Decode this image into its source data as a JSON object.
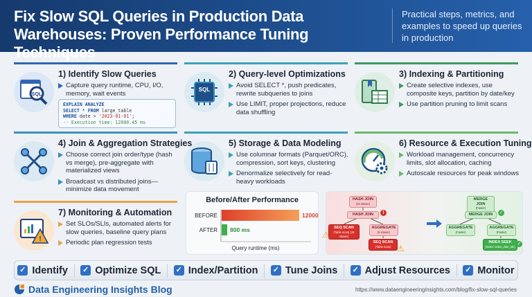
{
  "header": {
    "title": "Fix Slow SQL Queries in Production Data Warehouses: Proven Performance Tuning Techniques",
    "subtitle": "Practical steps, metrics, and examples to speed up queries in production"
  },
  "sections": [
    {
      "title": "1) Identify Slow Queries",
      "icon": "sql-magnifier-icon",
      "accent": "#2f66b3",
      "bullets": [
        "Capture query runtime, CPU, I/O, memory, wait events"
      ]
    },
    {
      "title": "2) Query-level Optimizations",
      "icon": "sql-chip-icon",
      "accent": "#3aa0b8",
      "bullets": [
        "Avoid SELECT *, push predicates, rewrite subqueries to joins",
        "Use LIMIT, proper projections, reduce data shuffling"
      ]
    },
    {
      "title": "3) Indexing & Partitioning",
      "icon": "index-table-icon",
      "accent": "#3d9a5e",
      "bullets": [
        "Create selective indexes, use composite keys, partition by date/key",
        "Use partition pruning to limit scans"
      ]
    },
    {
      "title": "4) Join & Aggregation Strategies",
      "icon": "join-network-icon",
      "accent": "#3a8fc0",
      "bullets": [
        "Choose correct join order/type (hash vs merge), pre-aggregate with materialized views",
        "Broadcast vs distributed joins—minimize data movement"
      ]
    },
    {
      "title": "5) Storage & Data Modeling",
      "icon": "database-icon",
      "accent": "#3aa0b8",
      "bullets": [
        "Use columnar formats (Parquet/ORC), compression, sort keys, clustering",
        "Denormalize selectively for read-heavy workloads"
      ]
    },
    {
      "title": "6) Resource & Execution Tuning",
      "icon": "gauge-gear-icon",
      "accent": "#6cb86a",
      "bullets": [
        "Workload management, concurrency limits, slot allocation, caching",
        "Autoscale resources for peak windows"
      ]
    },
    {
      "title": "7) Monitoring & Automation",
      "icon": "monitor-alert-icon",
      "accent": "#e8a24a",
      "bullets": [
        "Set SLOs/SLIs, automated alerts for slow queries, baseline query plans",
        "Periodic plan regression tests"
      ]
    }
  ],
  "code": {
    "l1": "EXPLAIN ANALYZE",
    "l2k": "SELECT",
    "l2a": " * ",
    "l2k2": "FROM",
    "l2b": " large_table",
    "l3k": "WHERE",
    "l3a": " date > ",
    "l3s": "'2023-01-01'",
    "l3b": ";",
    "l4": "-- Execution time: 12000.45 ms"
  },
  "chart_data": {
    "type": "bar",
    "title": "Before/After Performance",
    "categories": [
      "BEFORE",
      "AFTER"
    ],
    "values": [
      12000,
      800
    ],
    "value_labels": [
      "12000 ms",
      "800 ms"
    ],
    "xlabel": "Query runtime (ms)",
    "colors": [
      "#e8502c",
      "#3fae4c"
    ],
    "orientation": "horizontal"
  },
  "plan": {
    "before": [
      {
        "t": "HASH JOIN",
        "s": "(15 slower)"
      },
      {
        "t": "HASH JOIN",
        "s": ""
      },
      {
        "t": "SEQ SCAN",
        "s": "(Table scan) (15 slower)"
      },
      {
        "t": "AGGREGATE",
        "s": "(5 slower)"
      },
      {
        "t": "SEQ SCAN",
        "s": "(Table scan)"
      }
    ],
    "after": [
      {
        "t": "MERGE JOIN",
        "s": "(Faster)"
      },
      {
        "t": "MERGE JOIN",
        "s": ""
      },
      {
        "t": "AGGREGATE",
        "s": "(Faster)"
      },
      {
        "t": "AGGREGATE",
        "s": "(Faster)"
      },
      {
        "t": "INDEX SEEK",
        "s": "(Index: sales_date_idx)"
      }
    ]
  },
  "checklist": [
    "Identify",
    "Optimize SQL",
    "Index/Partition",
    "Tune Joins",
    "Adjust Resources",
    "Monitor"
  ],
  "footer": {
    "brand": "Data Engineering Insights Blog",
    "url": "https://www.dataengineeringinsights.com/blog/fix-slow-sql-queries"
  }
}
